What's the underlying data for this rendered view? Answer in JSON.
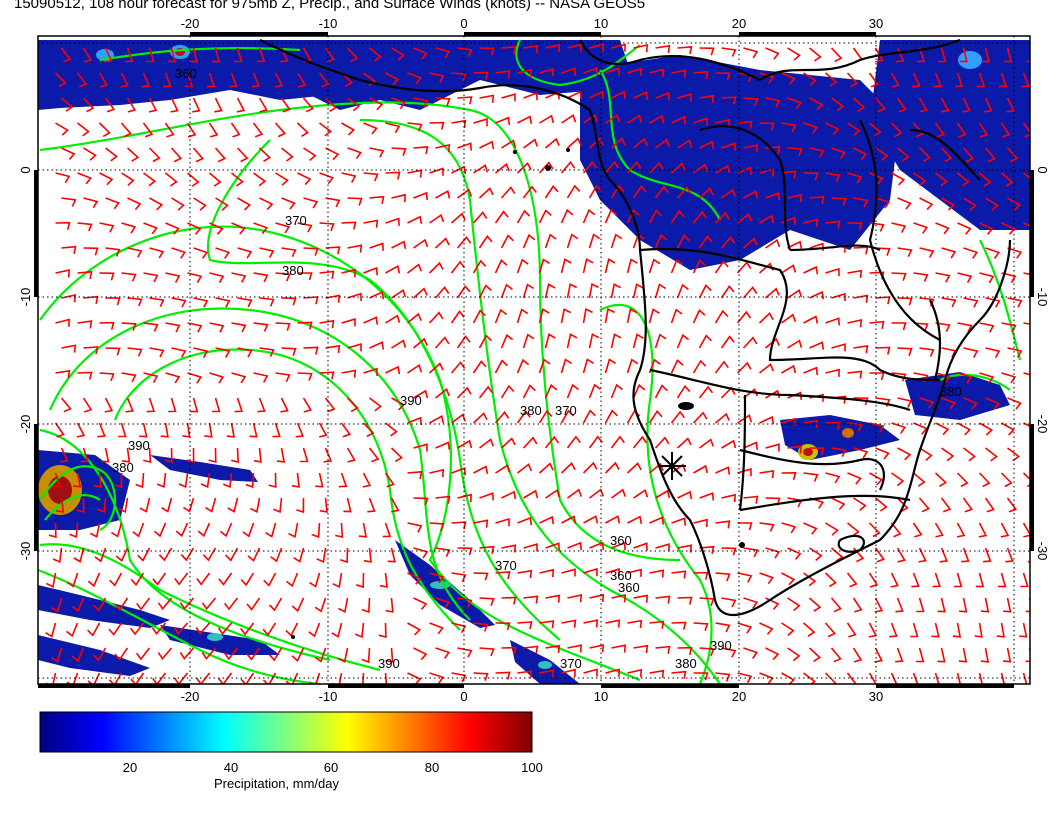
{
  "title": "15090512, 108 hour forecast for 975mb Z, Precip., and Surface Winds (knots) -- NASA GEOS5",
  "map": {
    "lon_range": [
      -31,
      40
    ],
    "lat_range": [
      -41,
      10
    ],
    "lon_ticks": [
      "-20",
      "-10",
      "0",
      "10",
      "20",
      "30"
    ],
    "lat_ticks": [
      "0",
      "-10",
      "-20",
      "-30"
    ],
    "contour_labels": [
      "360",
      "370",
      "380",
      "390"
    ],
    "colors": {
      "wind_barbs": "#ff0000",
      "contours": "#00ee00",
      "coastline": "#000000",
      "precip_low": "#000080",
      "precip_high": "#800000"
    },
    "marker": "station-star"
  },
  "colorbar": {
    "label": "Precipitation, mm/day",
    "ticks": [
      "20",
      "40",
      "60",
      "80",
      "100"
    ],
    "range": [
      0,
      100
    ],
    "colors": [
      "#00007f",
      "#0000ff",
      "#007fff",
      "#00ffff",
      "#7fff7f",
      "#ffff00",
      "#ff7f00",
      "#ff0000",
      "#7f0000"
    ]
  }
}
